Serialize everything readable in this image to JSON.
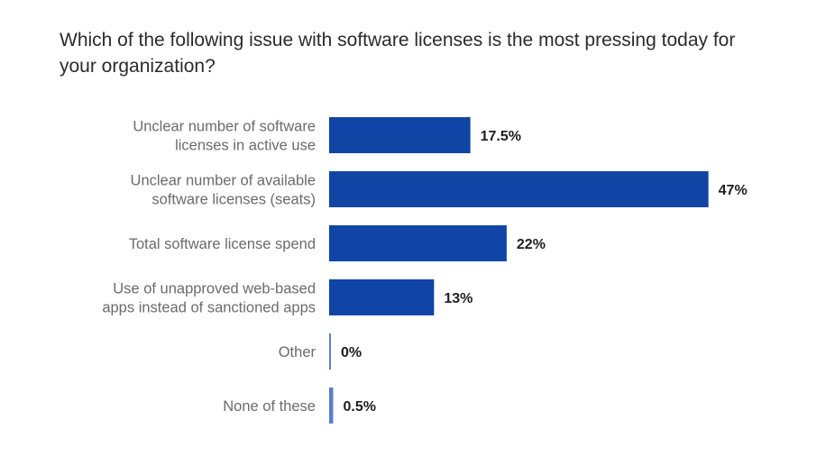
{
  "chart_data": {
    "type": "bar",
    "orientation": "horizontal",
    "title": "Which of the following issue with software licenses is the most pressing today for your organization?",
    "xlabel": "",
    "ylabel": "",
    "grid": false,
    "legend": "none",
    "xlim": [
      0,
      50
    ],
    "bar_color": "#1045a6",
    "categories": [
      [
        "Unclear number of software",
        "licenses in active use"
      ],
      [
        "Unclear number of available",
        "software licenses (seats)"
      ],
      [
        "Total software license spend"
      ],
      [
        "Use of unapproved web-based",
        "apps instead of sanctioned apps"
      ],
      [
        "Other"
      ],
      [
        "None of these"
      ]
    ],
    "values": [
      17.5,
      47,
      22,
      13,
      0,
      0.5
    ],
    "value_labels": [
      "17.5%",
      "47%",
      "22%",
      "13%",
      "0%",
      "0.5%"
    ]
  }
}
